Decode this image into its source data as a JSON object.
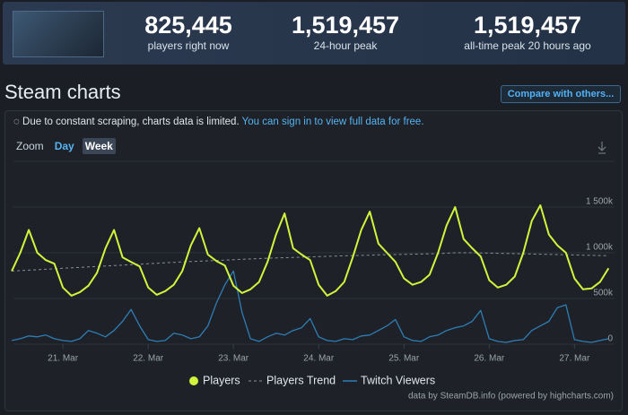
{
  "header": {
    "stats": [
      {
        "value": "825,445",
        "label": "players right now"
      },
      {
        "value": "1,519,457",
        "label": "24-hour peak"
      },
      {
        "value": "1,519,457",
        "label": "all-time peak 20 hours ago"
      }
    ]
  },
  "section_title": "Steam charts",
  "compare_button": "Compare with others...",
  "notice": {
    "text": "Due to constant scraping, charts data is limited.",
    "link": "You can sign in to view full data for free."
  },
  "zoom": {
    "label": "Zoom",
    "options": [
      "Day",
      "Week"
    ]
  },
  "chart_data": {
    "type": "line",
    "x": [
      20.4,
      20.5,
      20.6,
      20.7,
      20.8,
      20.9,
      21.0,
      21.1,
      21.2,
      21.3,
      21.4,
      21.5,
      21.6,
      21.7,
      21.8,
      21.9,
      22.0,
      22.1,
      22.2,
      22.3,
      22.4,
      22.5,
      22.6,
      22.7,
      22.8,
      22.9,
      23.0,
      23.1,
      23.2,
      23.3,
      23.4,
      23.5,
      23.6,
      23.7,
      23.8,
      23.9,
      24.0,
      24.1,
      24.2,
      24.3,
      24.4,
      24.5,
      24.6,
      24.7,
      24.8,
      24.9,
      25.0,
      25.1,
      25.2,
      25.3,
      25.4,
      25.5,
      25.6,
      25.7,
      25.8,
      25.9,
      26.0,
      26.1,
      26.2,
      26.3,
      26.4,
      26.5,
      26.6,
      26.7,
      26.8,
      26.9,
      27.0,
      27.1,
      27.2,
      27.3,
      27.4
    ],
    "series": [
      {
        "name": "Players",
        "color": "#d2f53c",
        "style": "solid",
        "values": [
          800,
          1000,
          1250,
          1000,
          920,
          880,
          620,
          530,
          570,
          640,
          780,
          1050,
          1250,
          950,
          900,
          850,
          620,
          540,
          580,
          650,
          800,
          1080,
          1270,
          980,
          910,
          860,
          640,
          560,
          600,
          680,
          900,
          1200,
          1430,
          1050,
          980,
          920,
          650,
          530,
          580,
          680,
          950,
          1250,
          1450,
          1100,
          1000,
          900,
          720,
          650,
          680,
          760,
          1000,
          1300,
          1500,
          1150,
          1050,
          960,
          700,
          620,
          650,
          740,
          1000,
          1350,
          1520,
          1200,
          1080,
          1000,
          720,
          600,
          610,
          680,
          830
        ]
      },
      {
        "name": "Players Trend",
        "color": "#8a9099",
        "style": "dashed",
        "values": [
          800,
          805,
          810,
          815,
          820,
          825,
          830,
          835,
          840,
          845,
          850,
          855,
          860,
          865,
          870,
          875,
          880,
          885,
          890,
          895,
          900,
          904,
          908,
          912,
          916,
          920,
          924,
          928,
          932,
          936,
          940,
          943,
          946,
          949,
          952,
          955,
          958,
          961,
          964,
          967,
          970,
          972,
          974,
          976,
          978,
          980,
          982,
          984,
          986,
          988,
          990,
          995,
          1000,
          1000,
          1000,
          998,
          996,
          994,
          992,
          990,
          988,
          986,
          984,
          982,
          980,
          978,
          976,
          974,
          972,
          970,
          968
        ]
      },
      {
        "name": "Twitch Viewers",
        "color": "#2e7db5",
        "style": "solid",
        "values": [
          40,
          60,
          90,
          80,
          100,
          60,
          40,
          30,
          60,
          150,
          120,
          80,
          150,
          250,
          380,
          200,
          50,
          30,
          40,
          120,
          100,
          60,
          80,
          200,
          450,
          650,
          800,
          350,
          60,
          30,
          80,
          120,
          100,
          150,
          180,
          280,
          80,
          40,
          30,
          60,
          50,
          90,
          100,
          150,
          200,
          270,
          80,
          40,
          30,
          80,
          100,
          150,
          180,
          200,
          250,
          370,
          60,
          30,
          20,
          40,
          50,
          150,
          200,
          250,
          400,
          430,
          50,
          30,
          20,
          40,
          60
        ]
      }
    ],
    "xlim": [
      20.42,
      27.47
    ],
    "xticks": [
      {
        "value": 21,
        "label": "21. Mar"
      },
      {
        "value": 22,
        "label": "22. Mar"
      },
      {
        "value": 23,
        "label": "23. Mar"
      },
      {
        "value": 24,
        "label": "24. Mar"
      },
      {
        "value": 25,
        "label": "25. Mar"
      },
      {
        "value": 26,
        "label": "26. Mar"
      },
      {
        "value": 27,
        "label": "27. Mar"
      }
    ],
    "ylim": [
      0,
      2000
    ],
    "yticks": [
      0,
      {
        "value": 500,
        "label": "500k"
      },
      {
        "value": 1000,
        "label": "1 000k"
      },
      {
        "value": 1500,
        "label": "1 500k"
      }
    ],
    "grid": true,
    "credits": "data by SteamDB.info (powered by highcharts.com)"
  }
}
